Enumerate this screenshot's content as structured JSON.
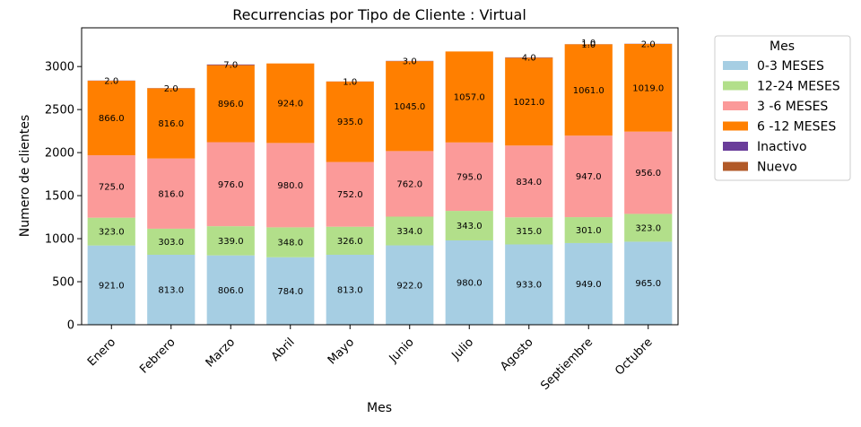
{
  "chart_data": {
    "type": "bar",
    "stacked": true,
    "title": "Recurrencias por Tipo de Cliente : Virtual",
    "xlabel": "Mes",
    "ylabel": "Numero de clientes",
    "ylim": [
      0,
      3450
    ],
    "yticks": [
      0,
      500,
      1000,
      1500,
      2000,
      2500,
      3000
    ],
    "grid": false,
    "legend_title": "Mes",
    "legend_position": "outside-top-right",
    "categories": [
      "Enero",
      "Febrero",
      "Marzo",
      "Abril",
      "Mayo",
      "Junio",
      "Julio",
      "Agosto",
      "Septiembre",
      "Octubre"
    ],
    "series": [
      {
        "name": "0-3 MESES",
        "color": "#a6cee3",
        "values": [
          921,
          813,
          806,
          784,
          813,
          922,
          980,
          933,
          949,
          965
        ],
        "labels": [
          "921.0",
          "813.0",
          "806.0",
          "784.0",
          "813.0",
          "922.0",
          "980.0",
          "933.0",
          "949.0",
          "965.0"
        ]
      },
      {
        "name": "12-24 MESES",
        "color": "#b2df8a",
        "values": [
          323,
          303,
          339,
          348,
          326,
          334,
          343,
          315,
          301,
          323
        ],
        "labels": [
          "323.0",
          "303.0",
          "339.0",
          "348.0",
          "326.0",
          "334.0",
          "343.0",
          "315.0",
          "301.0",
          "323.0"
        ]
      },
      {
        "name": "3 -6 MESES",
        "color": "#fb9a99",
        "values": [
          725,
          816,
          976,
          980,
          752,
          762,
          795,
          834,
          947,
          956
        ],
        "labels": [
          "725.0",
          "816.0",
          "976.0",
          "980.0",
          "752.0",
          "762.0",
          "795.0",
          "834.0",
          "947.0",
          "956.0"
        ]
      },
      {
        "name": "6 -12 MESES",
        "color": "#ff7f00",
        "values": [
          866,
          816,
          896,
          924,
          935,
          1045,
          1057,
          1021,
          1061,
          1019
        ],
        "labels": [
          "866.0",
          "816.0",
          "896.0",
          "924.0",
          "935.0",
          "1045.0",
          "1057.0",
          "1021.0",
          "1061.0",
          "1019.0"
        ]
      },
      {
        "name": "Inactivo",
        "color": "#6a3d9a",
        "values": [
          2,
          2,
          7,
          0,
          1,
          3,
          0,
          4,
          1,
          2
        ],
        "labels": [
          "2.0",
          "2.0",
          "7.0",
          "",
          "1.0",
          "3.0",
          "",
          "4.0",
          "1.0",
          "2.0"
        ]
      },
      {
        "name": "Nuevo",
        "color": "#b15928",
        "values": [
          0,
          0,
          0,
          0,
          0,
          0,
          0,
          0,
          1,
          0
        ],
        "labels": [
          "",
          "",
          "",
          "",
          "",
          "",
          "",
          "",
          "1.0",
          ""
        ]
      }
    ]
  }
}
